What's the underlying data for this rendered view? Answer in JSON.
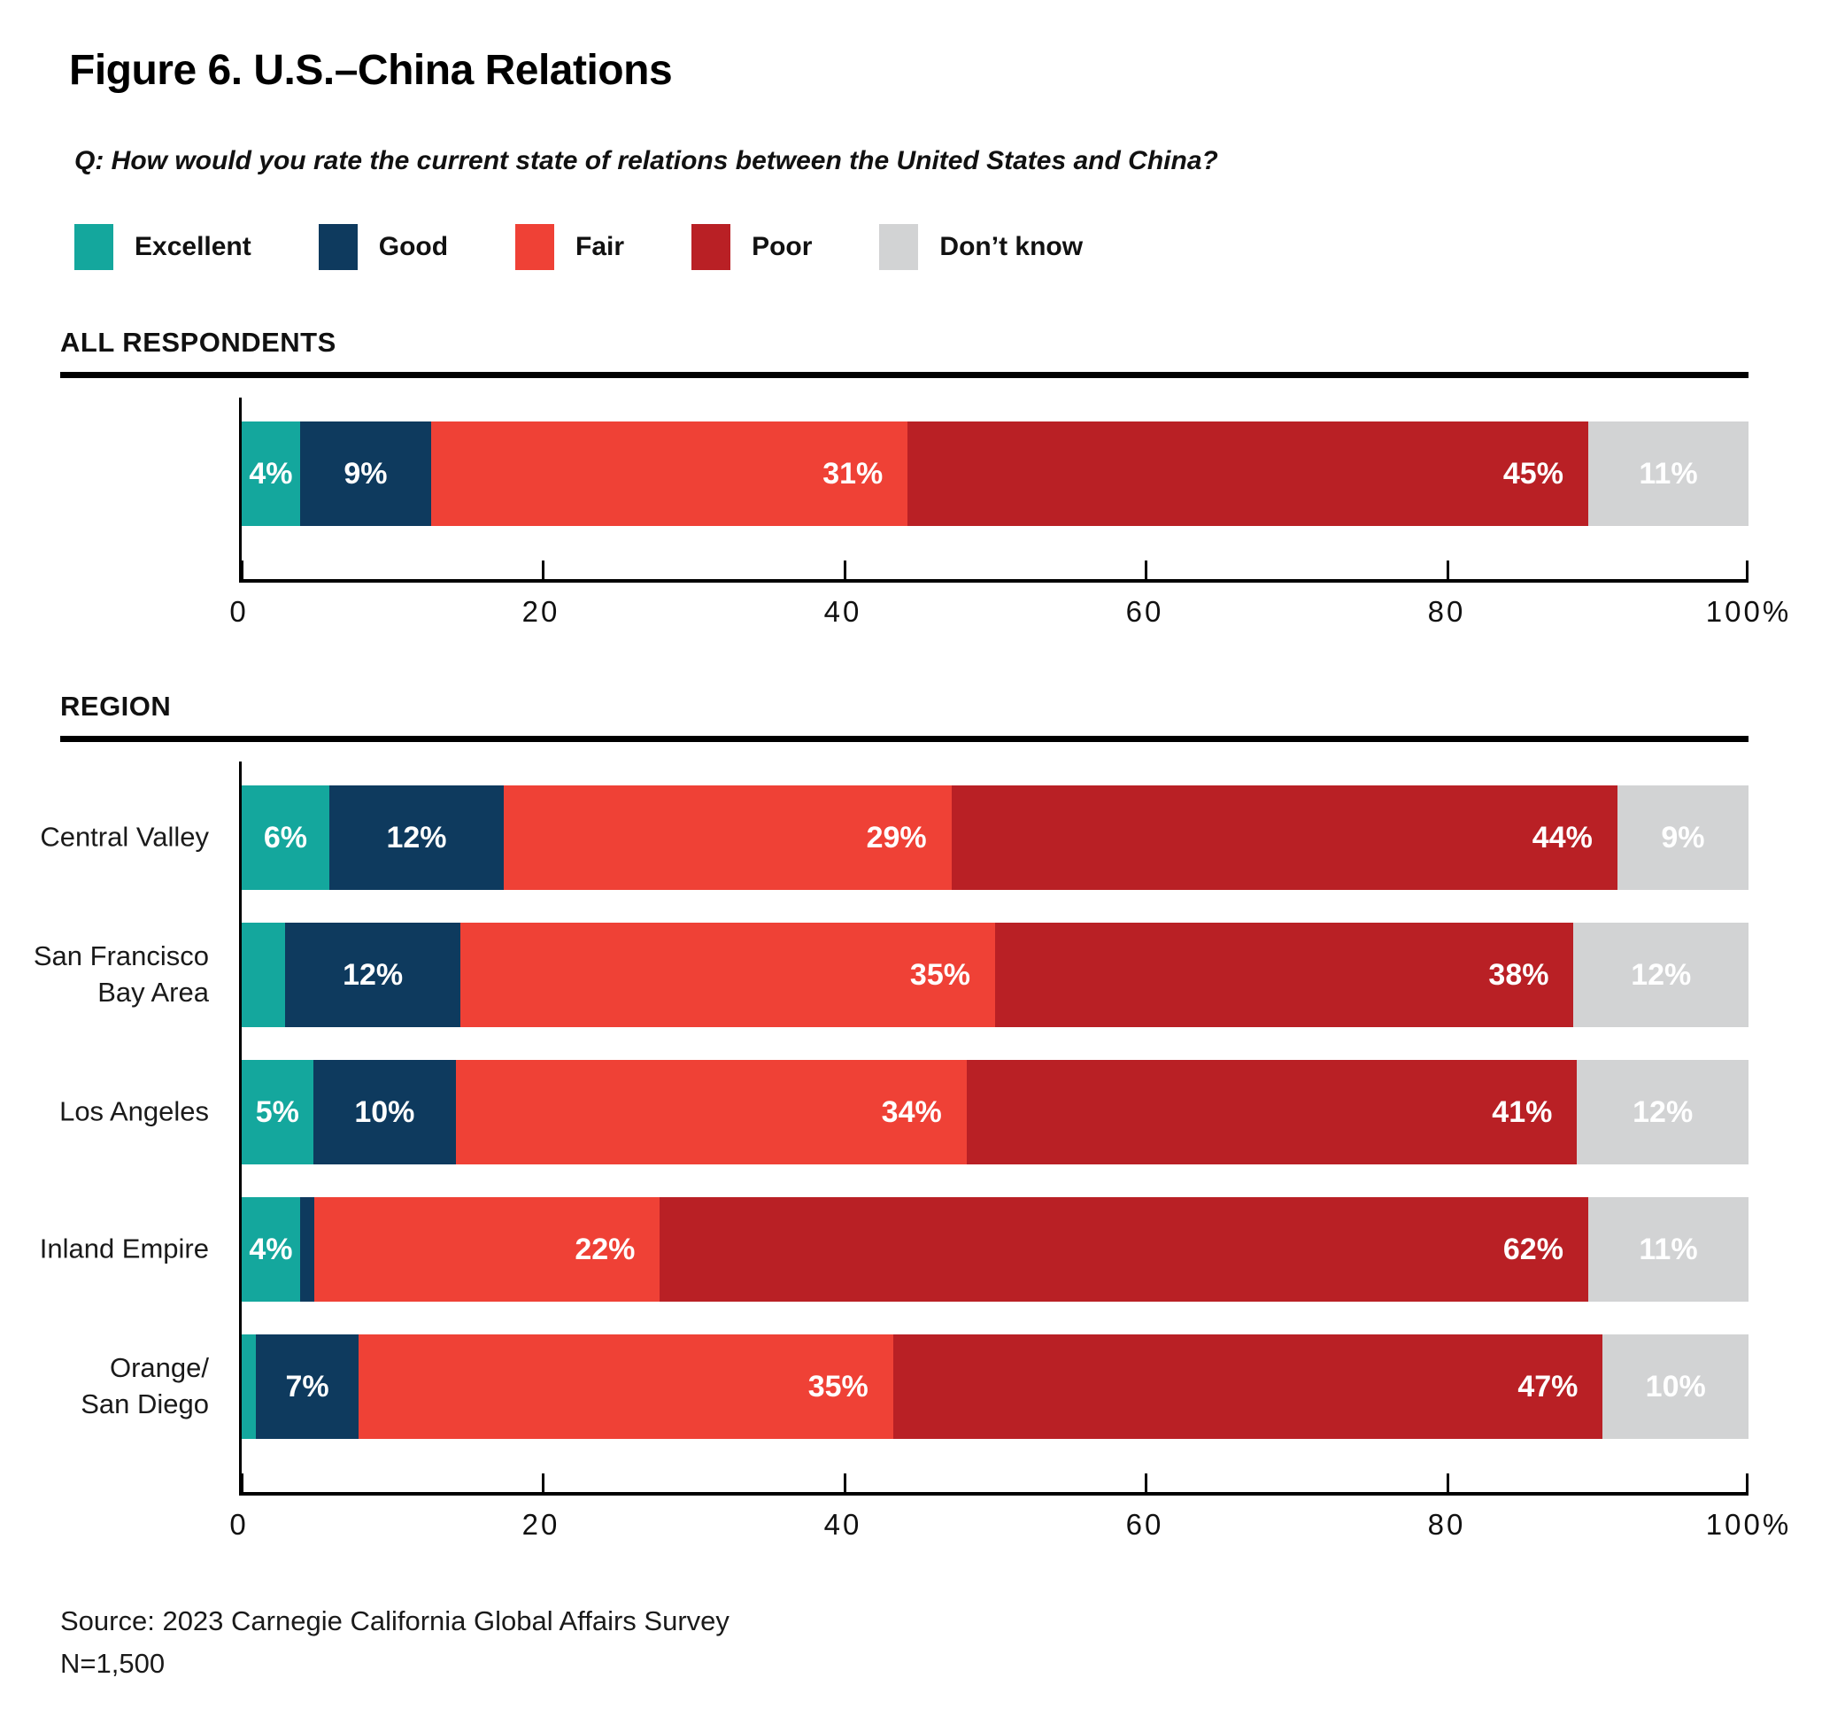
{
  "figure": {
    "title": "Figure 6. U.S.–China Relations",
    "question": "Q: How would you rate the current state of relations between the United States and China?",
    "source": "Source: 2023 Carnegie California Global Affairs Survey",
    "sample_size": "N=1,500"
  },
  "legend": {
    "items": [
      {
        "label": "Excellent",
        "color": "#14A79D"
      },
      {
        "label": "Good",
        "color": "#0E3A5E"
      },
      {
        "label": "Fair",
        "color": "#EF4136"
      },
      {
        "label": "Poor",
        "color": "#B92025"
      },
      {
        "label": "Don’t know",
        "color": "#D2D3D4"
      }
    ]
  },
  "chart_data": {
    "type": "bar",
    "variant": "stacked-horizontal",
    "unit": "percent",
    "series_names": [
      "Excellent",
      "Good",
      "Fair",
      "Poor",
      "Don’t know"
    ],
    "series_colors": [
      "#14A79D",
      "#0E3A5E",
      "#EF4136",
      "#B92025",
      "#D2D3D4"
    ],
    "xlim": [
      0,
      100
    ],
    "x_ticks": [
      {
        "value": 0,
        "label": "0"
      },
      {
        "value": 20,
        "label": "20"
      },
      {
        "value": 40,
        "label": "40"
      },
      {
        "value": 60,
        "label": "60"
      },
      {
        "value": 80,
        "label": "80"
      },
      {
        "value": 100,
        "label": "100%"
      }
    ],
    "groups": [
      {
        "heading": "ALL RESPONDENTS",
        "rows": [
          {
            "label": "",
            "label_lines": [],
            "values": [
              4,
              9,
              31,
              45,
              11
            ],
            "segment_labels": [
              "4%",
              "9%",
              "31%",
              "45%",
              "11%"
            ]
          }
        ]
      },
      {
        "heading": "REGION",
        "rows": [
          {
            "label": "Central Valley",
            "label_lines": [
              "Central Valley"
            ],
            "values": [
              6,
              12,
              29,
              44,
              9
            ],
            "segment_labels": [
              "6%",
              "12%",
              "29%",
              "44%",
              "9%"
            ]
          },
          {
            "label": "San Francisco Bay Area",
            "label_lines": [
              "San Francisco",
              "Bay Area"
            ],
            "values": [
              3,
              12,
              35,
              38,
              12
            ],
            "segment_labels": [
              "",
              "12%",
              "35%",
              "38%",
              "12%"
            ]
          },
          {
            "label": "Los Angeles",
            "label_lines": [
              "Los Angeles"
            ],
            "values": [
              5,
              10,
              34,
              41,
              12
            ],
            "segment_labels": [
              "5%",
              "10%",
              "34%",
              "41%",
              "12%"
            ]
          },
          {
            "label": "Inland Empire",
            "label_lines": [
              "Inland Empire"
            ],
            "values": [
              4,
              1,
              22,
              62,
              11
            ],
            "segment_labels": [
              "4%",
              "",
              "22%",
              "62%",
              "11%"
            ]
          },
          {
            "label": "Orange/San Diego",
            "label_lines": [
              "Orange/",
              "San Diego"
            ],
            "values": [
              1,
              7,
              35,
              47,
              10
            ],
            "segment_labels": [
              "",
              "7%",
              "35%",
              "47%",
              "10%"
            ]
          }
        ]
      }
    ]
  }
}
